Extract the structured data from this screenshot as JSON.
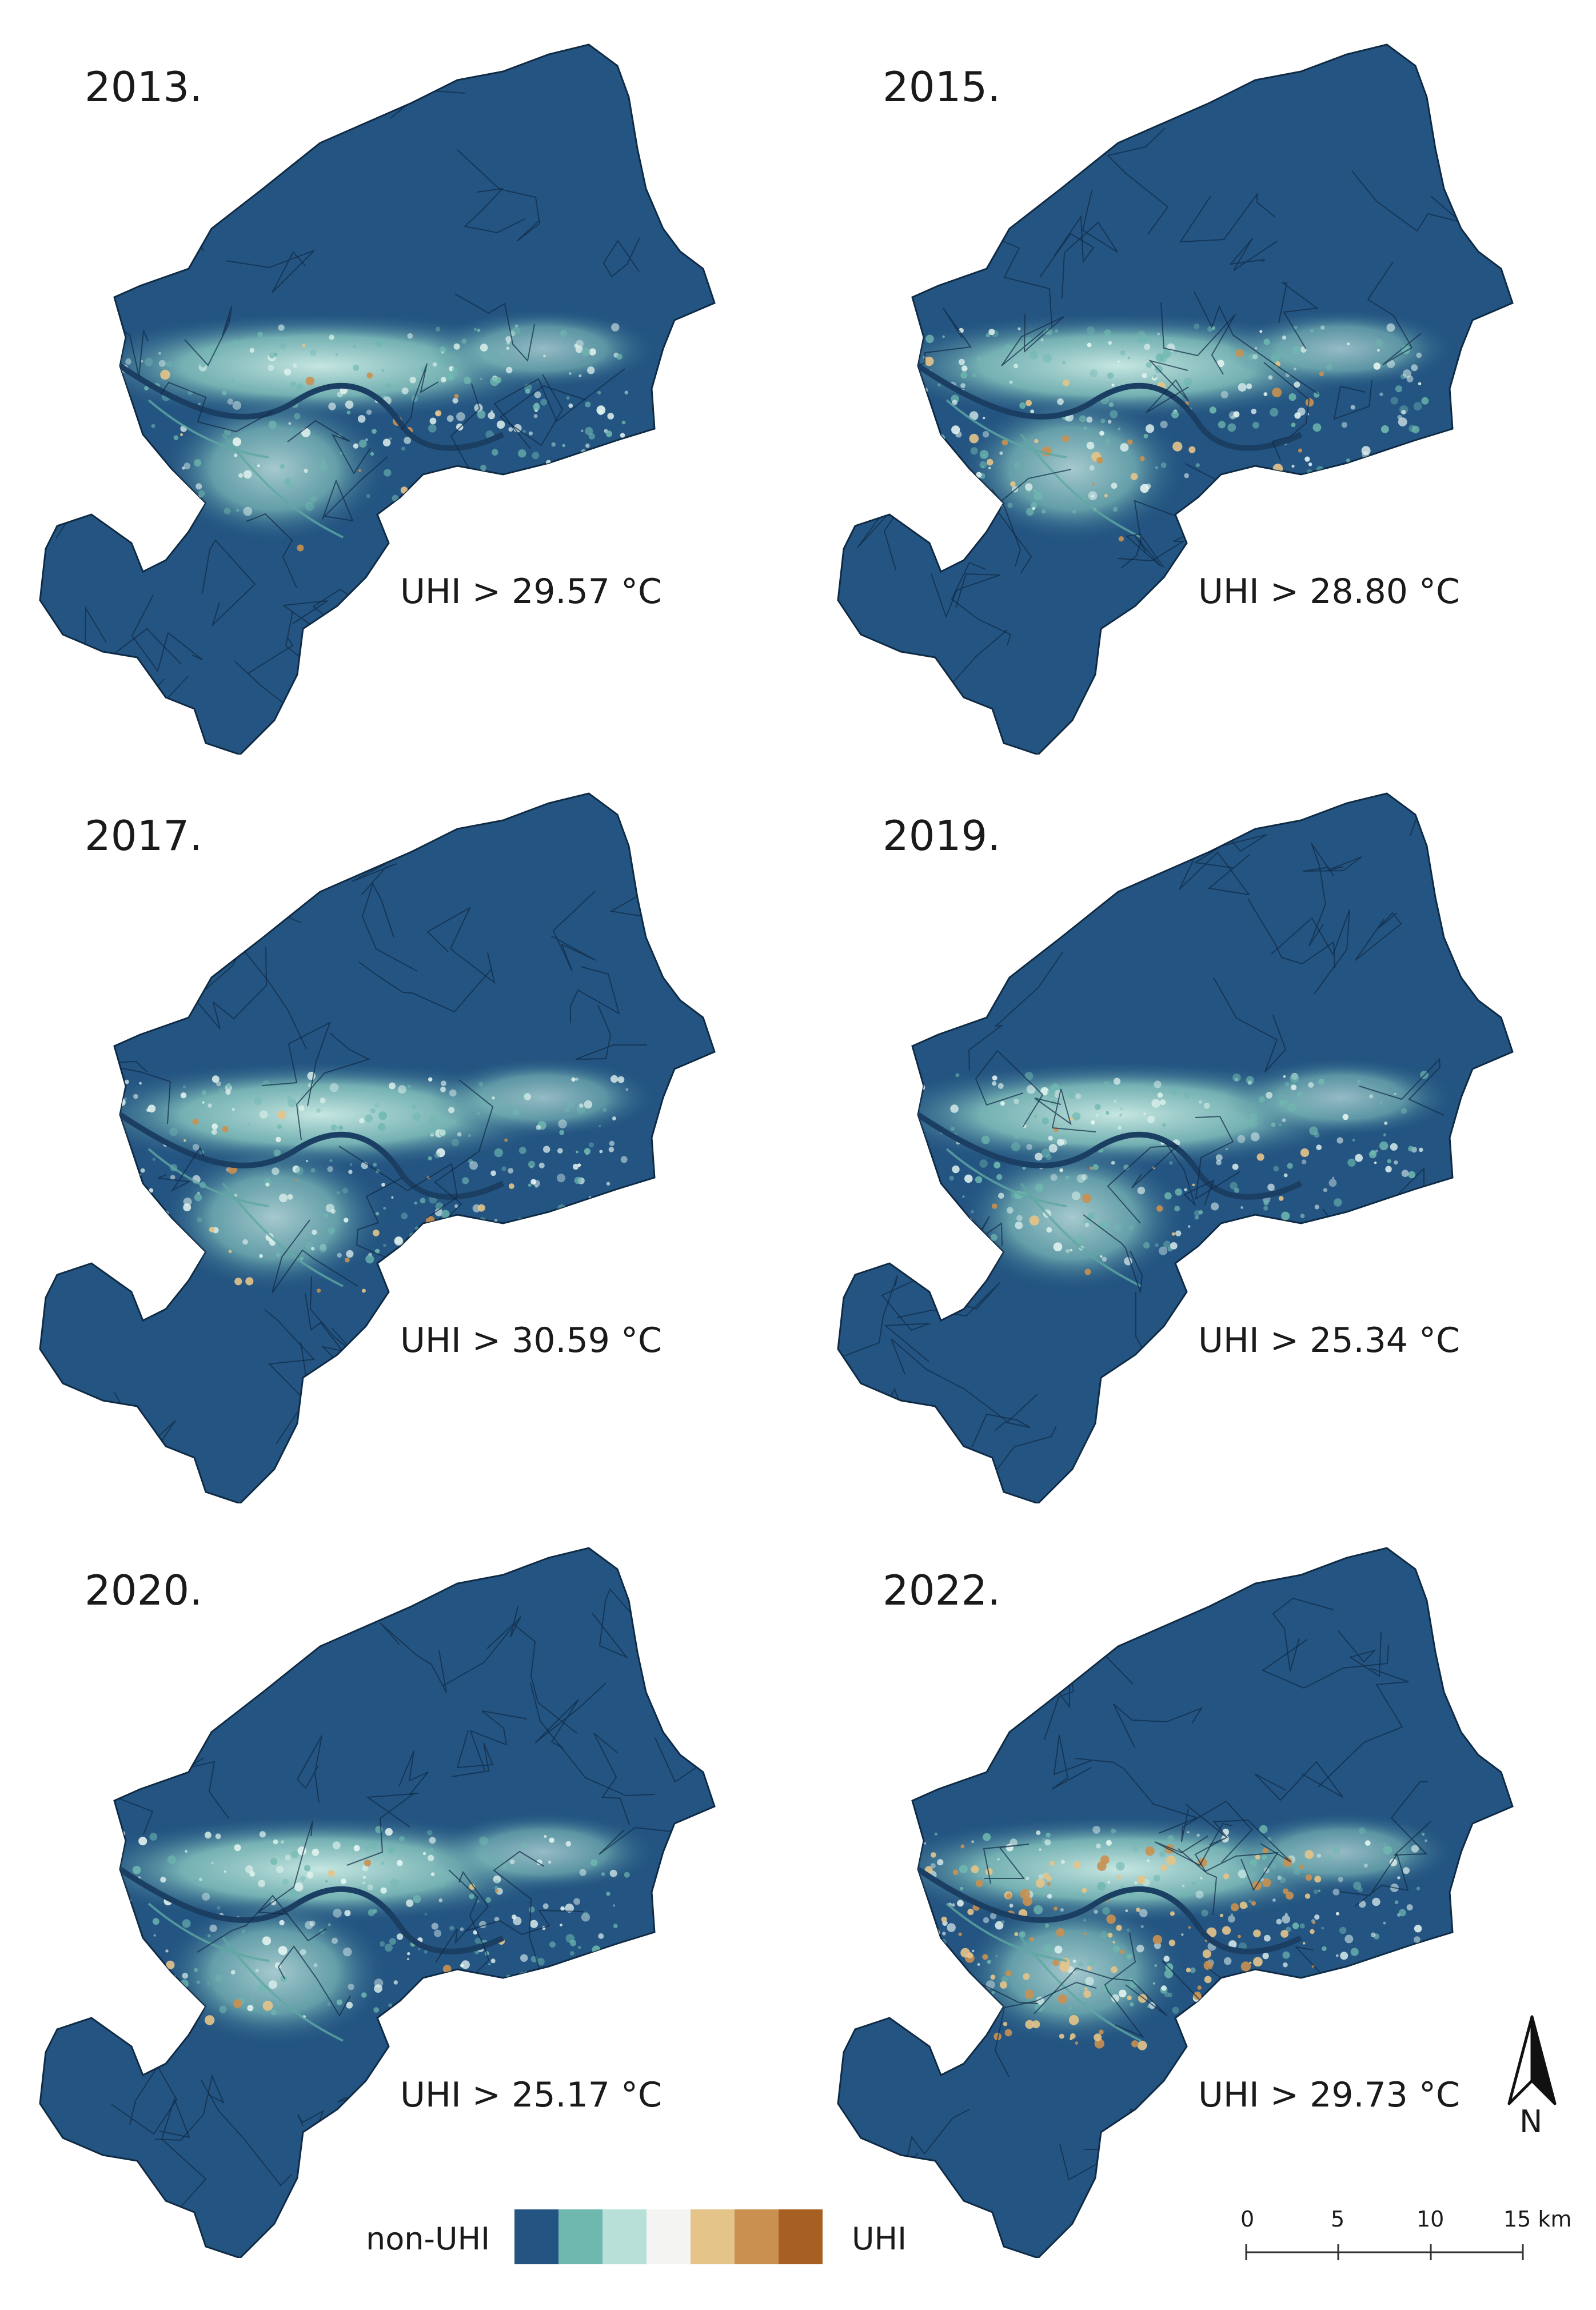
{
  "panels": [
    {
      "year": "2013.",
      "threshold": "UHI > 29.57 °C",
      "hotspots": 0.1
    },
    {
      "year": "2015.",
      "threshold": "UHI > 28.80 °C",
      "hotspots": 0.2
    },
    {
      "year": "2017.",
      "threshold": "UHI > 30.59 °C",
      "hotspots": 0.15
    },
    {
      "year": "2019.",
      "threshold": "UHI > 25.34 °C",
      "hotspots": 0.1
    },
    {
      "year": "2020.",
      "threshold": "UHI > 25.17 °C",
      "hotspots": 0.1
    },
    {
      "year": "2022.",
      "threshold": "UHI > 29.73 °C",
      "hotspots": 0.9
    }
  ],
  "legend": {
    "low_label": "non-UHI",
    "high_label": "UHI",
    "colors": [
      "#245582",
      "#6fb8b0",
      "#b8e0d8",
      "#f4f4f2",
      "#e4c489",
      "#c99050",
      "#a85f22"
    ]
  },
  "scale": {
    "ticks": [
      "0",
      "5",
      "10",
      "15 km"
    ]
  },
  "north_arrow": {
    "label": "N"
  }
}
